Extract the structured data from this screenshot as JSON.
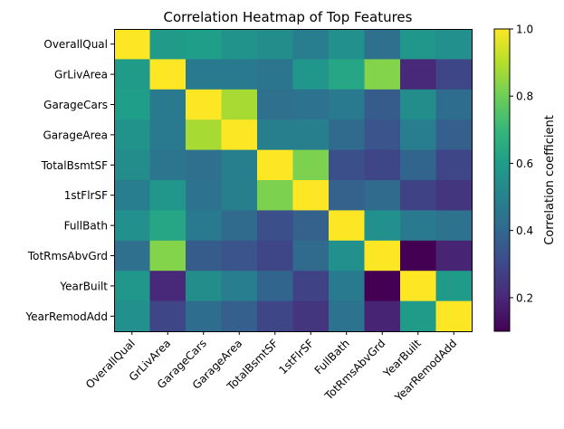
{
  "chart_data": {
    "type": "heatmap",
    "title": "Correlation Heatmap of Top Features",
    "xlabel": "",
    "ylabel": "",
    "row_labels": [
      "OverallQual",
      "GrLivArea",
      "GarageCars",
      "GarageArea",
      "TotalBsmtSF",
      "1stFlrSF",
      "FullBath",
      "TotRmsAbvGrd",
      "YearBuilt",
      "YearRemodAdd"
    ],
    "col_labels": [
      "OverallQual",
      "GrLivArea",
      "GarageCars",
      "GarageArea",
      "TotalBsmtSF",
      "1stFlrSF",
      "FullBath",
      "TotRmsAbvGrd",
      "YearBuilt",
      "YearRemodAdd"
    ],
    "values": [
      [
        1.0,
        0.59,
        0.6,
        0.56,
        0.54,
        0.48,
        0.55,
        0.43,
        0.57,
        0.55
      ],
      [
        0.59,
        1.0,
        0.47,
        0.47,
        0.45,
        0.57,
        0.63,
        0.83,
        0.2,
        0.29
      ],
      [
        0.6,
        0.47,
        1.0,
        0.88,
        0.43,
        0.44,
        0.47,
        0.36,
        0.54,
        0.42
      ],
      [
        0.56,
        0.47,
        0.88,
        1.0,
        0.49,
        0.49,
        0.41,
        0.34,
        0.48,
        0.37
      ],
      [
        0.54,
        0.45,
        0.43,
        0.49,
        1.0,
        0.82,
        0.32,
        0.29,
        0.39,
        0.29
      ],
      [
        0.48,
        0.57,
        0.44,
        0.49,
        0.82,
        1.0,
        0.38,
        0.41,
        0.28,
        0.24
      ],
      [
        0.55,
        0.63,
        0.47,
        0.41,
        0.32,
        0.38,
        1.0,
        0.55,
        0.47,
        0.44
      ],
      [
        0.43,
        0.83,
        0.36,
        0.34,
        0.29,
        0.41,
        0.55,
        1.0,
        0.1,
        0.19
      ],
      [
        0.57,
        0.2,
        0.54,
        0.48,
        0.39,
        0.28,
        0.47,
        0.1,
        1.0,
        0.59
      ],
      [
        0.55,
        0.29,
        0.42,
        0.37,
        0.29,
        0.24,
        0.44,
        0.19,
        0.59,
        1.0
      ]
    ],
    "colormap": "viridis",
    "colorbar": {
      "label": "Correlation coefficient",
      "range": [
        0.1,
        1.0
      ],
      "ticks": [
        0.2,
        0.4,
        0.6,
        0.8,
        1.0
      ],
      "tick_labels": [
        "0.2",
        "0.4",
        "0.6",
        "0.8",
        "1.0"
      ]
    },
    "grid": false,
    "legend": "colorbar-right"
  }
}
